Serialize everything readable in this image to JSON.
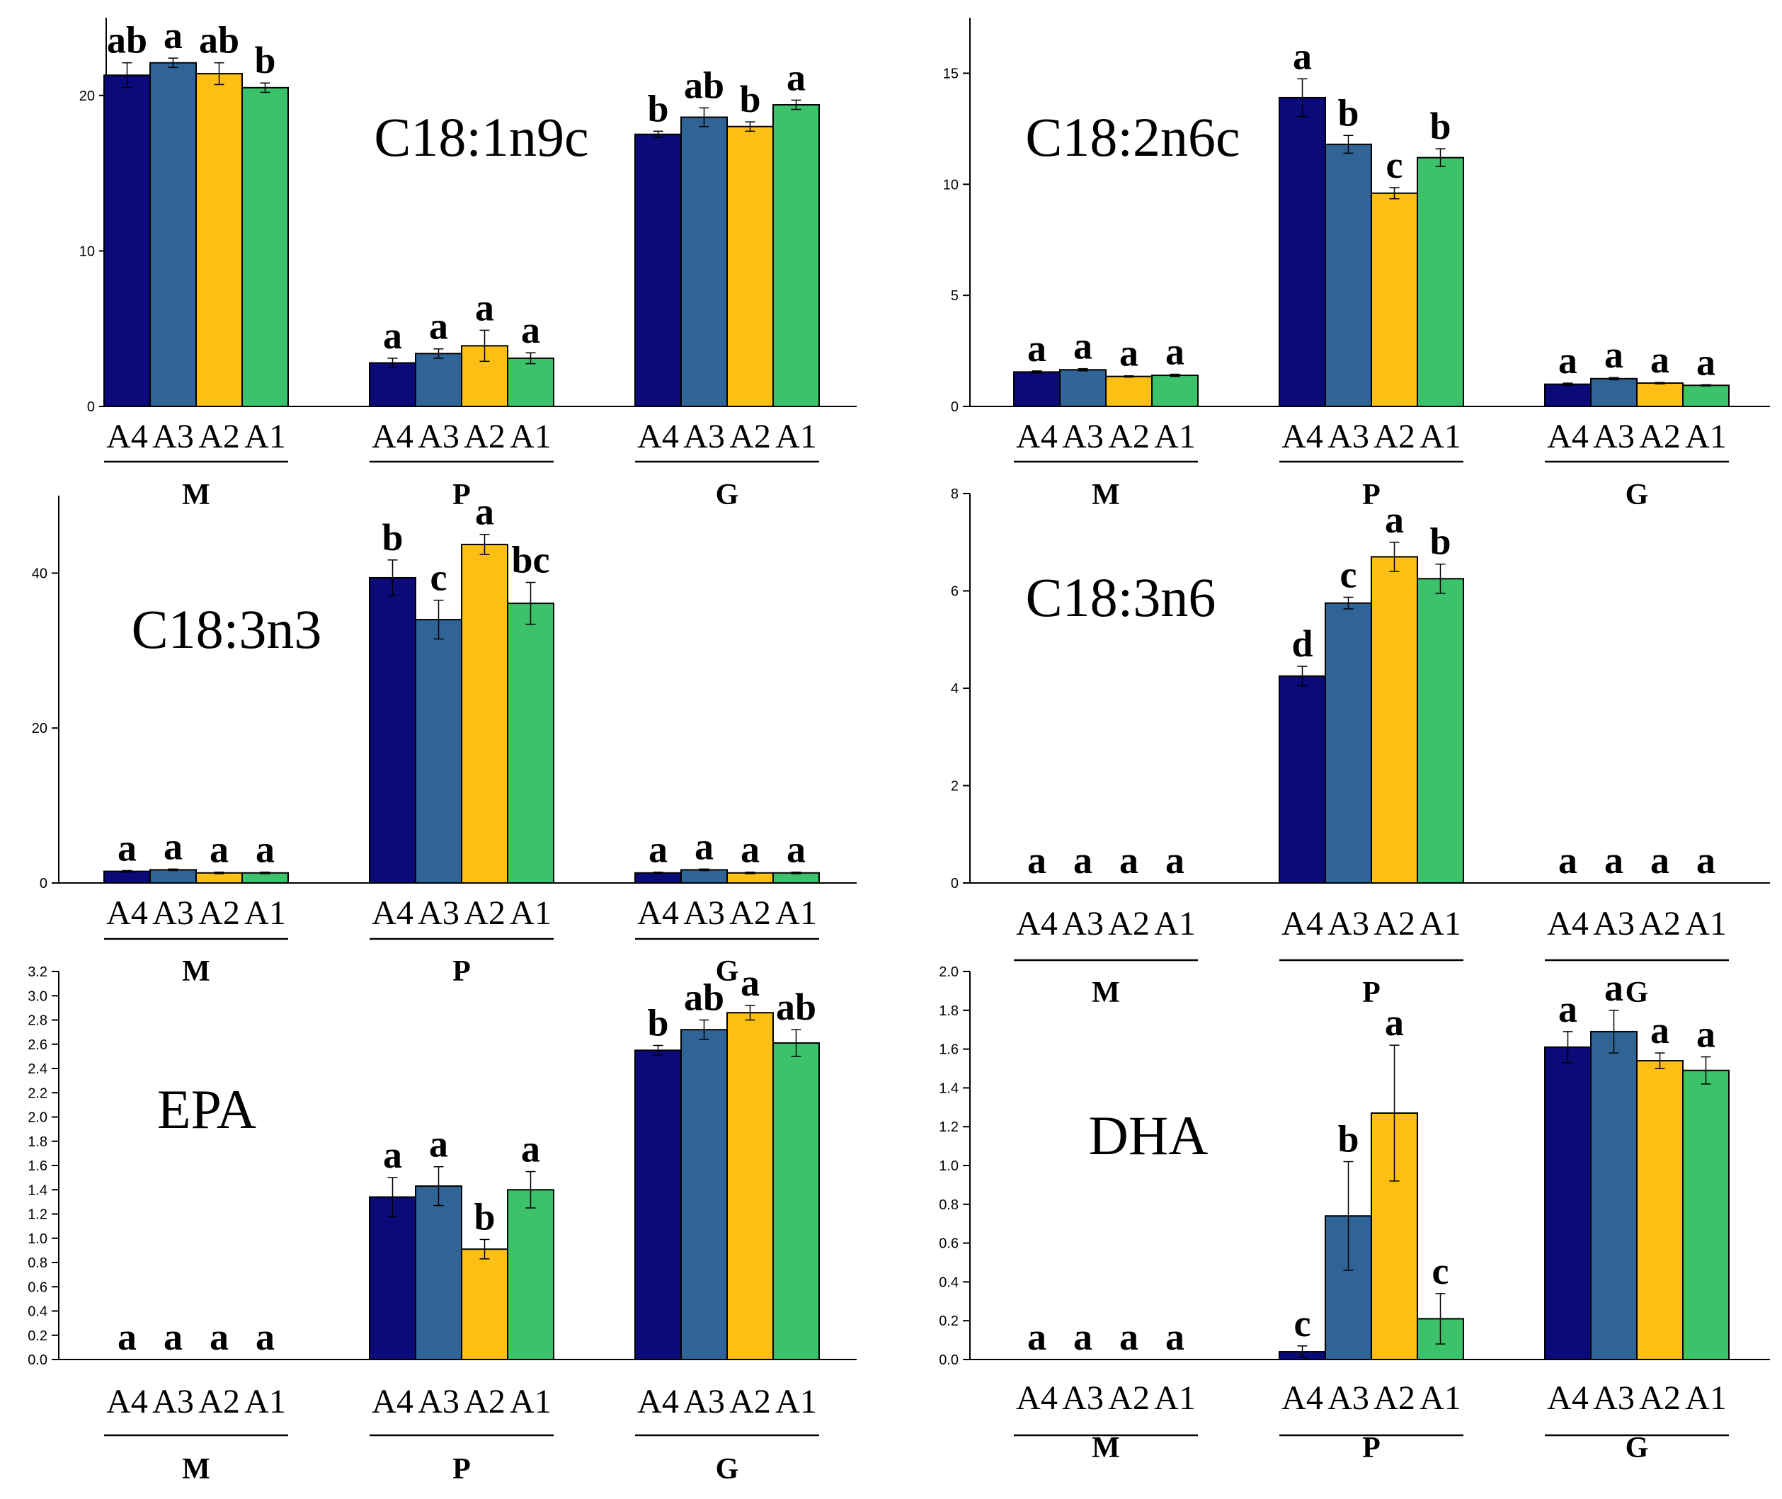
{
  "colors": {
    "A4": "#0a0a78",
    "A3": "#306496",
    "A2": "#fcbf14",
    "A1": "#3dc26c",
    "axis": "#000000"
  },
  "chart_data": [
    {
      "type": "bar",
      "title": "C18:1n9c",
      "groups": [
        "M",
        "P",
        "G"
      ],
      "categories": [
        "A4",
        "A3",
        "A2",
        "A1"
      ],
      "ylim": [
        0,
        25
      ],
      "yticks": [
        0,
        10,
        20
      ],
      "ytick_labels": [
        "0",
        "10",
        "20"
      ],
      "values": [
        [
          21.3,
          22.1,
          21.4,
          20.5
        ],
        [
          2.8,
          3.4,
          3.9,
          3.1
        ],
        [
          17.5,
          18.6,
          18.0,
          19.4
        ]
      ],
      "errors": [
        [
          0.8,
          0.3,
          0.7,
          0.3
        ],
        [
          0.3,
          0.3,
          1.0,
          0.35
        ],
        [
          0.2,
          0.6,
          0.3,
          0.3
        ]
      ],
      "letters": [
        [
          "ab",
          "a",
          "ab",
          "b"
        ],
        [
          "a",
          "a",
          "a",
          "a"
        ],
        [
          "b",
          "ab",
          "b",
          "a"
        ]
      ]
    },
    {
      "type": "bar",
      "title": "C18:2n6c",
      "groups": [
        "M",
        "P",
        "G"
      ],
      "categories": [
        "A4",
        "A3",
        "A2",
        "A1"
      ],
      "ylim": [
        0,
        17.5
      ],
      "yticks": [
        0,
        5,
        10,
        15
      ],
      "ytick_labels": [
        "0",
        "5",
        "10",
        "15"
      ],
      "values": [
        [
          1.55,
          1.65,
          1.35,
          1.4
        ],
        [
          13.9,
          11.8,
          9.6,
          11.2
        ],
        [
          1.0,
          1.25,
          1.05,
          0.95
        ]
      ],
      "errors": [
        [
          0.05,
          0.05,
          0.03,
          0.05
        ],
        [
          0.85,
          0.4,
          0.25,
          0.4
        ],
        [
          0.05,
          0.05,
          0.03,
          0.03
        ]
      ],
      "letters": [
        [
          "a",
          "a",
          "a",
          "a"
        ],
        [
          "a",
          "b",
          "c",
          "b"
        ],
        [
          "a",
          "a",
          "a",
          "a"
        ]
      ]
    },
    {
      "type": "bar",
      "title": "C18:3n3",
      "groups": [
        "M",
        "P",
        "G"
      ],
      "categories": [
        "A4",
        "A3",
        "A2",
        "A1"
      ],
      "ylim": [
        0,
        50
      ],
      "yticks": [
        0,
        20,
        40
      ],
      "ytick_labels": [
        "0",
        "20",
        "40"
      ],
      "values": [
        [
          1.5,
          1.7,
          1.3,
          1.3
        ],
        [
          39.4,
          34.0,
          43.7,
          36.1
        ],
        [
          1.3,
          1.7,
          1.3,
          1.3
        ]
      ],
      "errors": [
        [
          0.1,
          0.1,
          0.1,
          0.1
        ],
        [
          2.3,
          2.5,
          1.3,
          2.7
        ],
        [
          0.1,
          0.1,
          0.1,
          0.1
        ]
      ],
      "letters": [
        [
          "a",
          "a",
          "a",
          "a"
        ],
        [
          "b",
          "c",
          "a",
          "bc"
        ],
        [
          "a",
          "a",
          "a",
          "a"
        ]
      ]
    },
    {
      "type": "bar",
      "title": "C18:3n6",
      "groups": [
        "M",
        "P",
        "G"
      ],
      "categories": [
        "A4",
        "A3",
        "A2",
        "A1"
      ],
      "ylim": [
        0,
        8
      ],
      "yticks": [
        0,
        2,
        4,
        6,
        8
      ],
      "ytick_labels": [
        "0",
        "2",
        "4",
        "6",
        "8"
      ],
      "values": [
        [
          0,
          0,
          0,
          0
        ],
        [
          4.25,
          5.75,
          6.7,
          6.25
        ],
        [
          0,
          0,
          0,
          0
        ]
      ],
      "errors": [
        [
          0,
          0,
          0,
          0
        ],
        [
          0.2,
          0.12,
          0.3,
          0.3
        ],
        [
          0,
          0,
          0,
          0
        ]
      ],
      "letters": [
        [
          "a",
          "a",
          "a",
          "a"
        ],
        [
          "d",
          "c",
          "a",
          "b"
        ],
        [
          "a",
          "a",
          "a",
          "a"
        ]
      ]
    },
    {
      "type": "bar",
      "title": "EPA",
      "groups": [
        "M",
        "P",
        "G"
      ],
      "categories": [
        "A4",
        "A3",
        "A2",
        "A1"
      ],
      "ylim": [
        0,
        3.2
      ],
      "yticks": [
        0,
        0.2,
        0.4,
        0.6,
        0.8,
        1.0,
        1.2,
        1.4,
        1.6,
        1.8,
        2.0,
        2.2,
        2.4,
        2.6,
        2.8,
        3.0,
        3.2
      ],
      "ytick_labels": [
        "0.0",
        "0.2",
        "0.4",
        "0.6",
        "0.8",
        "1.0",
        "1.2",
        "1.4",
        "1.6",
        "1.8",
        "2.0",
        "2.2",
        "2.4",
        "2.6",
        "2.8",
        "3.0",
        "3.2"
      ],
      "values": [
        [
          0,
          0,
          0,
          0
        ],
        [
          1.34,
          1.43,
          0.91,
          1.4
        ],
        [
          2.55,
          2.72,
          2.86,
          2.61
        ]
      ],
      "errors": [
        [
          0,
          0,
          0,
          0
        ],
        [
          0.16,
          0.16,
          0.08,
          0.15
        ],
        [
          0.04,
          0.08,
          0.06,
          0.11
        ]
      ],
      "letters": [
        [
          "a",
          "a",
          "a",
          "a"
        ],
        [
          "a",
          "a",
          "b",
          "a"
        ],
        [
          "b",
          "ab",
          "a",
          "ab"
        ]
      ]
    },
    {
      "type": "bar",
      "title": "DHA",
      "groups": [
        "M",
        "P",
        "G"
      ],
      "categories": [
        "A4",
        "A3",
        "A2",
        "A1"
      ],
      "ylim": [
        0,
        2.0
      ],
      "yticks": [
        0,
        0.2,
        0.4,
        0.6,
        0.8,
        1.0,
        1.2,
        1.4,
        1.6,
        1.8,
        2.0
      ],
      "ytick_labels": [
        "0.0",
        "0.2",
        "0.4",
        "0.6",
        "0.8",
        "1.0",
        "1.2",
        "1.4",
        "1.6",
        "1.8",
        "2.0"
      ],
      "values": [
        [
          0,
          0,
          0,
          0
        ],
        [
          0.04,
          0.74,
          1.27,
          0.21
        ],
        [
          1.61,
          1.69,
          1.54,
          1.49
        ]
      ],
      "errors": [
        [
          0,
          0,
          0,
          0
        ],
        [
          0.03,
          0.28,
          0.35,
          0.13
        ],
        [
          0.08,
          0.11,
          0.04,
          0.07
        ]
      ],
      "letters": [
        [
          "a",
          "a",
          "a",
          "a"
        ],
        [
          "c",
          "b",
          "a",
          "c"
        ],
        [
          "a",
          "a",
          "a",
          "a"
        ]
      ]
    }
  ]
}
